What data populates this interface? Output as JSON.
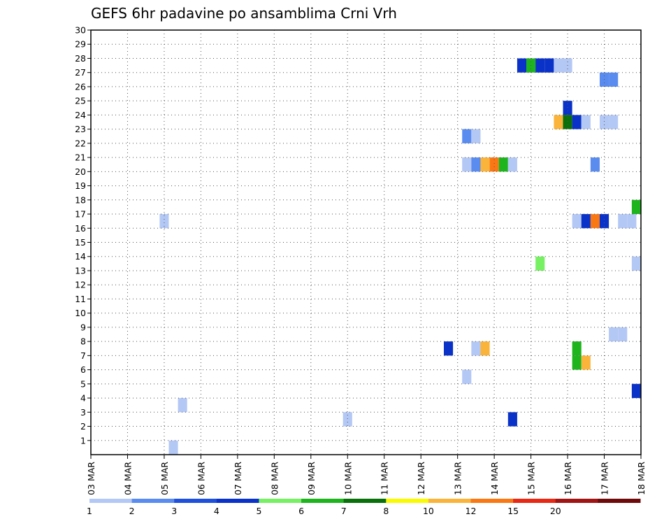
{
  "chart_data": {
    "type": "heatmap",
    "title": "GEFS 6hr padavine po ansamblima Crni Vrh",
    "xlabel": "",
    "ylabel": "",
    "x_tick_labels": [
      "03 MAR",
      "04 MAR",
      "05 MAR",
      "06 MAR",
      "07 MAR",
      "08 MAR",
      "09 MAR",
      "10 MAR",
      "11 MAR",
      "12 MAR",
      "13 MAR",
      "14 MAR",
      "15 MAR",
      "16 MAR",
      "17 MAR",
      "18 MAR"
    ],
    "x_range_days": [
      0,
      15
    ],
    "y_tick_labels": [
      "1",
      "2",
      "3",
      "4",
      "5",
      "6",
      "7",
      "8",
      "9",
      "10",
      "11",
      "12",
      "13",
      "14",
      "15",
      "16",
      "17",
      "18",
      "19",
      "20",
      "21",
      "22",
      "23",
      "24",
      "25",
      "26",
      "27",
      "28",
      "29",
      "30"
    ],
    "y_range": [
      0,
      30
    ],
    "grid": true,
    "legend": {
      "position": "bottom",
      "labels": [
        "1",
        "2",
        "3",
        "4",
        "5",
        "6",
        "7",
        "8",
        "10",
        "12",
        "15",
        "20"
      ],
      "colors": [
        "#b4c8f5",
        "#5a8cf0",
        "#1e50dc",
        "#0a32c8",
        "#78f064",
        "#1eb41e",
        "#0a700a",
        "#fafa00",
        "#fab43c",
        "#fa7814",
        "#e62814",
        "#a01414",
        "#6e0a0a"
      ]
    },
    "cells": [
      {
        "x": 2.0,
        "y": 16.5,
        "c": 0
      },
      {
        "x": 2.25,
        "y": 0.5,
        "c": 0
      },
      {
        "x": 2.5,
        "y": 3.5,
        "c": 0
      },
      {
        "x": 7.0,
        "y": 2.5,
        "c": 0
      },
      {
        "x": 9.75,
        "y": 7.5,
        "c": 3
      },
      {
        "x": 10.25,
        "y": 5.5,
        "c": 0
      },
      {
        "x": 10.25,
        "y": 20.5,
        "c": 0
      },
      {
        "x": 10.25,
        "y": 22.5,
        "c": 1
      },
      {
        "x": 10.5,
        "y": 7.5,
        "c": 0
      },
      {
        "x": 10.5,
        "y": 20.5,
        "c": 1
      },
      {
        "x": 10.5,
        "y": 22.5,
        "c": 0
      },
      {
        "x": 10.75,
        "y": 7.5,
        "c": 8
      },
      {
        "x": 10.75,
        "y": 20.5,
        "c": 8
      },
      {
        "x": 11.0,
        "y": 20.5,
        "c": 9
      },
      {
        "x": 11.25,
        "y": 20.5,
        "c": 5
      },
      {
        "x": 11.5,
        "y": 20.5,
        "c": 0
      },
      {
        "x": 11.5,
        "y": 2.5,
        "c": 3
      },
      {
        "x": 11.75,
        "y": 27.5,
        "c": 3
      },
      {
        "x": 12.0,
        "y": 27.5,
        "c": 5
      },
      {
        "x": 12.25,
        "y": 27.5,
        "c": 3
      },
      {
        "x": 12.5,
        "y": 27.5,
        "c": 3
      },
      {
        "x": 12.25,
        "y": 13.5,
        "c": 4
      },
      {
        "x": 12.75,
        "y": 27.5,
        "c": 0
      },
      {
        "x": 13.0,
        "y": 27.5,
        "c": 0
      },
      {
        "x": 12.75,
        "y": 23.5,
        "c": 8
      },
      {
        "x": 13.0,
        "y": 23.5,
        "c": 6
      },
      {
        "x": 13.25,
        "y": 23.5,
        "c": 3
      },
      {
        "x": 13.5,
        "y": 23.5,
        "c": 0
      },
      {
        "x": 13.0,
        "y": 24.5,
        "c": 3
      },
      {
        "x": 13.25,
        "y": 16.5,
        "c": 0
      },
      {
        "x": 13.5,
        "y": 16.5,
        "c": 3
      },
      {
        "x": 13.75,
        "y": 16.5,
        "c": 9
      },
      {
        "x": 14.0,
        "y": 16.5,
        "c": 3
      },
      {
        "x": 13.25,
        "y": 7.5,
        "c": 5
      },
      {
        "x": 13.25,
        "y": 6.5,
        "c": 5
      },
      {
        "x": 13.5,
        "y": 6.5,
        "c": 8
      },
      {
        "x": 13.75,
        "y": 20.5,
        "c": 1
      },
      {
        "x": 14.0,
        "y": 26.5,
        "c": 1
      },
      {
        "x": 14.25,
        "y": 26.5,
        "c": 1
      },
      {
        "x": 14.0,
        "y": 23.5,
        "c": 0
      },
      {
        "x": 14.25,
        "y": 23.5,
        "c": 0
      },
      {
        "x": 14.25,
        "y": 8.5,
        "c": 0
      },
      {
        "x": 14.5,
        "y": 8.5,
        "c": 0
      },
      {
        "x": 14.5,
        "y": 16.5,
        "c": 0
      },
      {
        "x": 14.75,
        "y": 16.5,
        "c": 0
      },
      {
        "x": 14.875,
        "y": 17.5,
        "c": 5
      },
      {
        "x": 14.875,
        "y": 13.5,
        "c": 0
      },
      {
        "x": 14.875,
        "y": 4.5,
        "c": 3
      }
    ]
  }
}
